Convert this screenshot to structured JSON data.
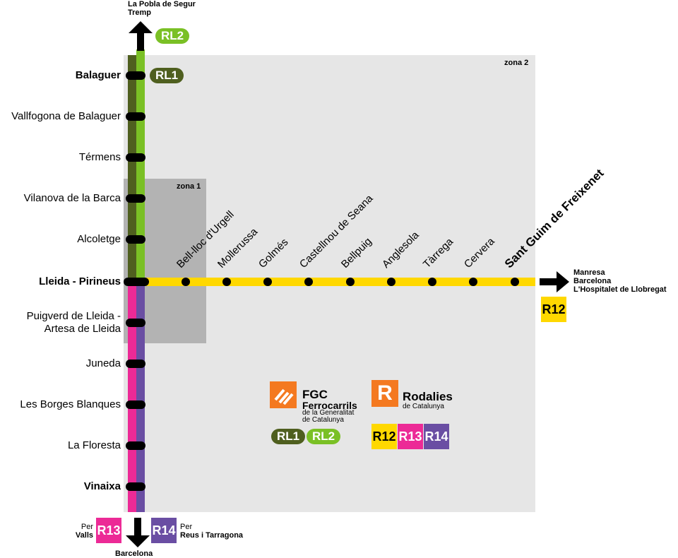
{
  "colors": {
    "rl1": "#4f5f1f",
    "rl2": "#7ac025",
    "r12": "#ffd800",
    "r13": "#ec2a96",
    "r14": "#6a4ea3",
    "orange": "#f47920",
    "zone1": "#b3b3b3",
    "zone2": "#e6e6e6"
  },
  "zones": {
    "zone1": "zona 1",
    "zone2": "zona 2"
  },
  "north": {
    "destinations": [
      "La Pobla de Segur",
      "Tremp"
    ],
    "line": "RL2",
    "arrow": "arrow-up-icon"
  },
  "balaguer_line": "RL1",
  "vertical_stations": [
    {
      "name": "Balaguer",
      "bold": true
    },
    {
      "name": "Vallfogona de Balaguer"
    },
    {
      "name": "Térmens"
    },
    {
      "name": "Vilanova de la Barca"
    },
    {
      "name": "Alcoletge"
    },
    {
      "name": "Lleida - Pirineus",
      "bold": true
    },
    {
      "name": "Puigverd de Lleida -\nArtesa de Lleida"
    },
    {
      "name": "Juneda"
    },
    {
      "name": "Les Borges Blanques"
    },
    {
      "name": "La Floresta"
    },
    {
      "name": "Vinaixa",
      "bold": true
    }
  ],
  "horizontal_stations": [
    {
      "name": "Bell-lloc d'Urgell"
    },
    {
      "name": "Mollerussa"
    },
    {
      "name": "Golmés"
    },
    {
      "name": "Castellnou de Seana"
    },
    {
      "name": "Bellpuig"
    },
    {
      "name": "Anglesola"
    },
    {
      "name": "Tàrrega"
    },
    {
      "name": "Cervera"
    },
    {
      "name": "Sant Guim de Freixenet",
      "bold": true
    }
  ],
  "east": {
    "destinations": [
      "Manresa",
      "Barcelona",
      "L'Hospitalet de Llobregat"
    ],
    "line": "R12"
  },
  "south": {
    "destination": "Barcelona",
    "left": {
      "per": "Per",
      "to": "Valls",
      "line": "R13"
    },
    "right": {
      "per": "Per",
      "to": "Reus i Tarragona",
      "line": "R14"
    }
  },
  "legend": {
    "fgc": {
      "name": "FGC",
      "sub": "Ferrocarrils",
      "desc1": "de la Generalitat",
      "desc2": "de Catalunya",
      "lines": [
        "RL1",
        "RL2"
      ]
    },
    "rodalies": {
      "letter": "R",
      "name": "Rodalies",
      "desc": "de Catalunya",
      "lines": [
        "R12",
        "R13",
        "R14"
      ]
    }
  }
}
